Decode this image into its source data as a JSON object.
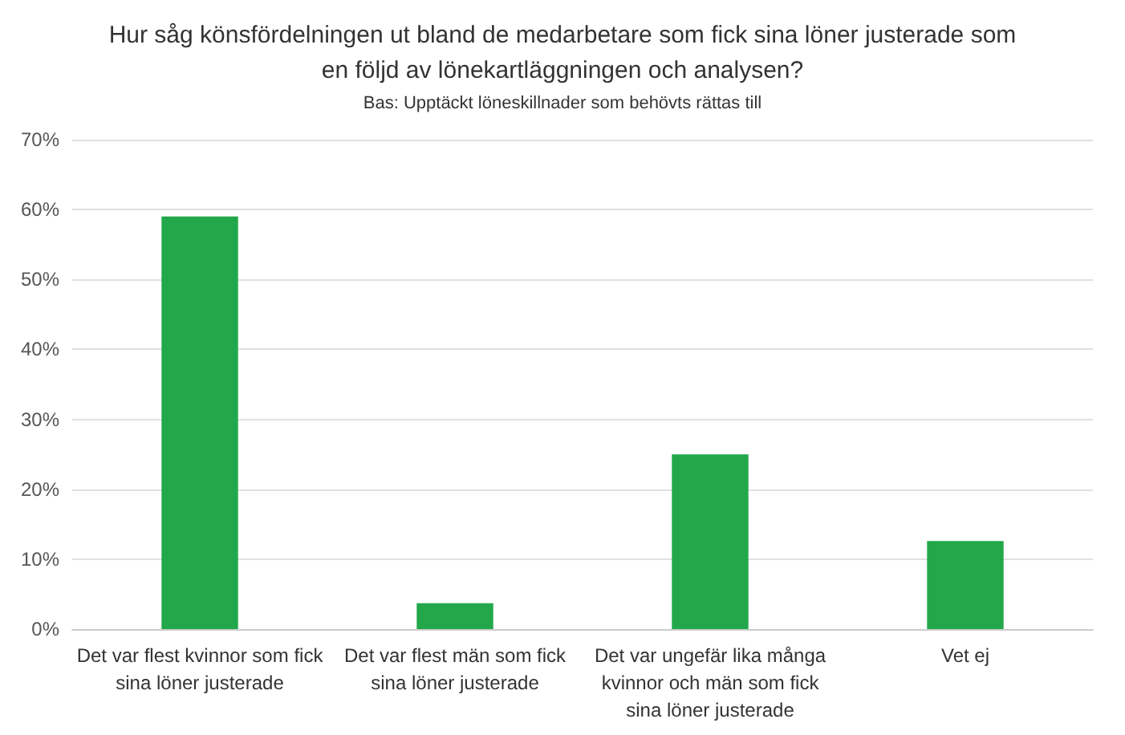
{
  "chart_data": {
    "type": "bar",
    "title": "Hur såg könsfördelningen ut bland de medarbetare som fick sina löner justerade som\nen följd av lönekartläggningen och analysen?",
    "subtitle": "Bas: Upptäckt löneskillnader som behövts rättas till",
    "categories": [
      "Det var flest kvinnor som fick\nsina löner justerade",
      "Det var flest män som fick\nsina löner justerade",
      "Det var ungefär lika många\nkvinnor och män som fick\nsina löner justerade",
      "Vet ej"
    ],
    "values": [
      59,
      3.7,
      25,
      12.6
    ],
    "color": "#22a84a",
    "ylim": [
      0,
      70
    ],
    "yticks": [
      {
        "value": 0,
        "label": "0%"
      },
      {
        "value": 10,
        "label": "10%"
      },
      {
        "value": 20,
        "label": "20%"
      },
      {
        "value": 30,
        "label": "30%"
      },
      {
        "value": 40,
        "label": "40%"
      },
      {
        "value": 50,
        "label": "50%"
      },
      {
        "value": 60,
        "label": "60%"
      },
      {
        "value": 70,
        "label": "70%"
      }
    ],
    "grid": "y"
  }
}
